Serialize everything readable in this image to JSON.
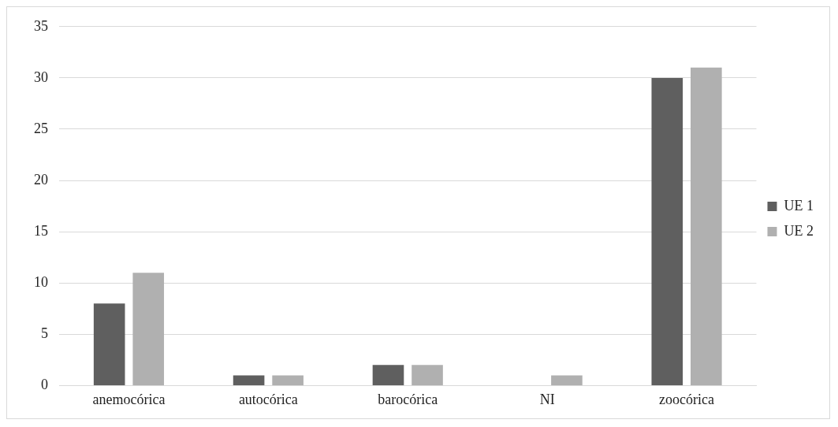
{
  "chart_data": {
    "type": "bar",
    "categories": [
      "anemocórica",
      "autocórica",
      "barocórica",
      "NI",
      "zoocórica"
    ],
    "series": [
      {
        "name": "UE 1",
        "color": "#5f5f5f",
        "values": [
          8,
          1,
          2,
          0,
          30
        ]
      },
      {
        "name": "UE 2",
        "color": "#b0b0b0",
        "values": [
          11,
          1,
          2,
          1,
          31
        ]
      }
    ],
    "ylim": [
      0,
      35
    ],
    "yticks": [
      0,
      5,
      10,
      15,
      20,
      25,
      30,
      35
    ],
    "grid": "y",
    "legend": "right"
  }
}
